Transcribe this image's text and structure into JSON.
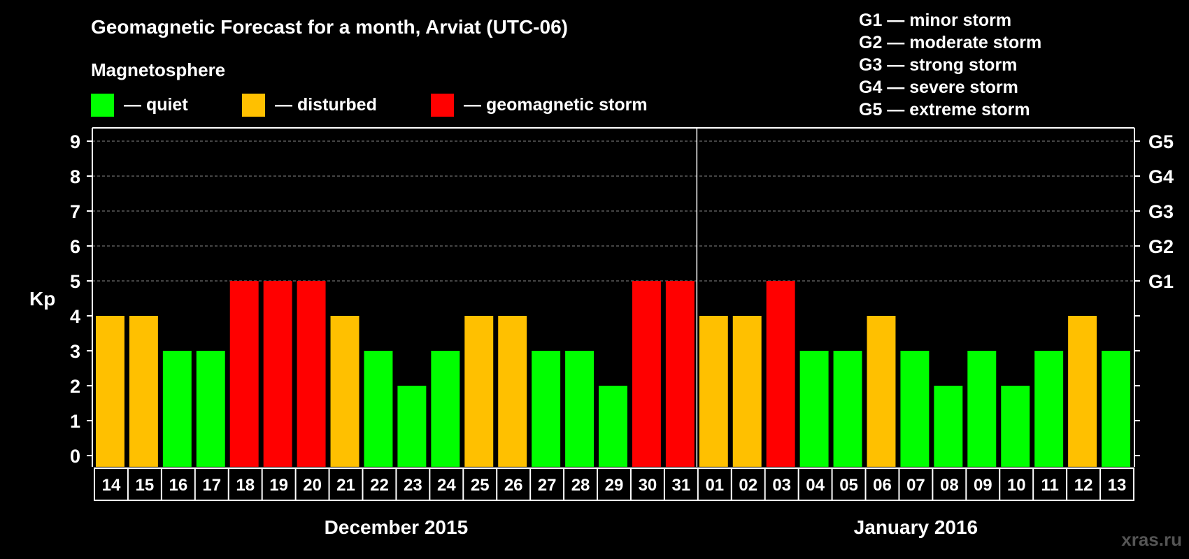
{
  "header": {
    "title": "Geomagnetic Forecast for a month, Arviat (UTC-06)",
    "subtitle": "Magnetosphere"
  },
  "legend": [
    {
      "label": "— quiet",
      "color": "#00ff00"
    },
    {
      "label": "— disturbed",
      "color": "#ffc000"
    },
    {
      "label": "— geomagnetic storm",
      "color": "#ff0000"
    }
  ],
  "storm_scale": [
    "G1 — minor storm",
    "G2 — moderate storm",
    "G3 — strong storm",
    "G4 — severe storm",
    "G5 — extreme storm"
  ],
  "credit": "xras.ru",
  "colors": {
    "quiet": "#00ff00",
    "disturbed": "#ffc000",
    "storm": "#ff0000"
  },
  "chart_data": {
    "type": "bar",
    "ylabel": "Kp",
    "ylim": [
      0,
      9
    ],
    "y_ticks": [
      "0",
      "1",
      "2",
      "3",
      "4",
      "5",
      "6",
      "7",
      "8",
      "9"
    ],
    "right_axis_labels": [
      {
        "kp": 5,
        "label": "G1"
      },
      {
        "kp": 6,
        "label": "G2"
      },
      {
        "kp": 7,
        "label": "G3"
      },
      {
        "kp": 8,
        "label": "G4"
      },
      {
        "kp": 9,
        "label": "G5"
      }
    ],
    "categories": [
      "14",
      "15",
      "16",
      "17",
      "18",
      "19",
      "20",
      "21",
      "22",
      "23",
      "24",
      "25",
      "26",
      "27",
      "28",
      "29",
      "30",
      "31",
      "01",
      "02",
      "03",
      "04",
      "05",
      "06",
      "07",
      "08",
      "09",
      "10",
      "11",
      "12",
      "13"
    ],
    "values": [
      4,
      4,
      3,
      3,
      5,
      5,
      5,
      4,
      3,
      2,
      3,
      4,
      4,
      3,
      3,
      2,
      5,
      5,
      4,
      4,
      5,
      3,
      3,
      4,
      3,
      2,
      3,
      2,
      3,
      4,
      3
    ],
    "months": [
      {
        "label": "December 2015",
        "first_index": 0,
        "last_index": 17
      },
      {
        "label": "January 2016",
        "first_index": 18,
        "last_index": 30
      }
    ],
    "grid": true
  }
}
